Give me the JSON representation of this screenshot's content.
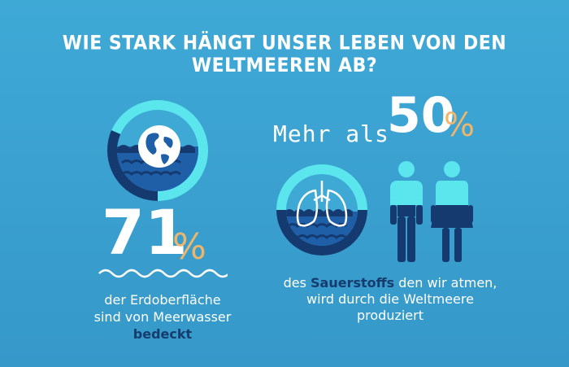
{
  "title": "WIE STARK HÄNGT UNSER LEBEN VON DEN WELTMEEREN AB?",
  "left": {
    "number": "71",
    "percent": "%",
    "caption_line1": "der Erdoberfläche",
    "caption_line2": "sind von Meerwasser",
    "caption_bold": "bedeckt",
    "icon": "globe-icon",
    "ocean_fraction": 0.71
  },
  "right": {
    "prefix": "Mehr als",
    "number": "50",
    "percent": "%",
    "caption_pre": "des",
    "caption_bold": "Sauerstoffs",
    "caption_post": "den wir atmen,",
    "caption_line2": "wird durch die Weltmeere",
    "caption_line3": "produziert",
    "icons": [
      "lungs-icon",
      "man-icon",
      "woman-icon"
    ],
    "fraction": 0.5
  },
  "colors": {
    "background": "#3fa9d6",
    "ring_light": "#5be6ee",
    "ocean_dark": "#1e5fa8",
    "ocean_navy": "#143a70",
    "accent_orange": "#f1b56a",
    "text_navy": "#163c6e"
  }
}
